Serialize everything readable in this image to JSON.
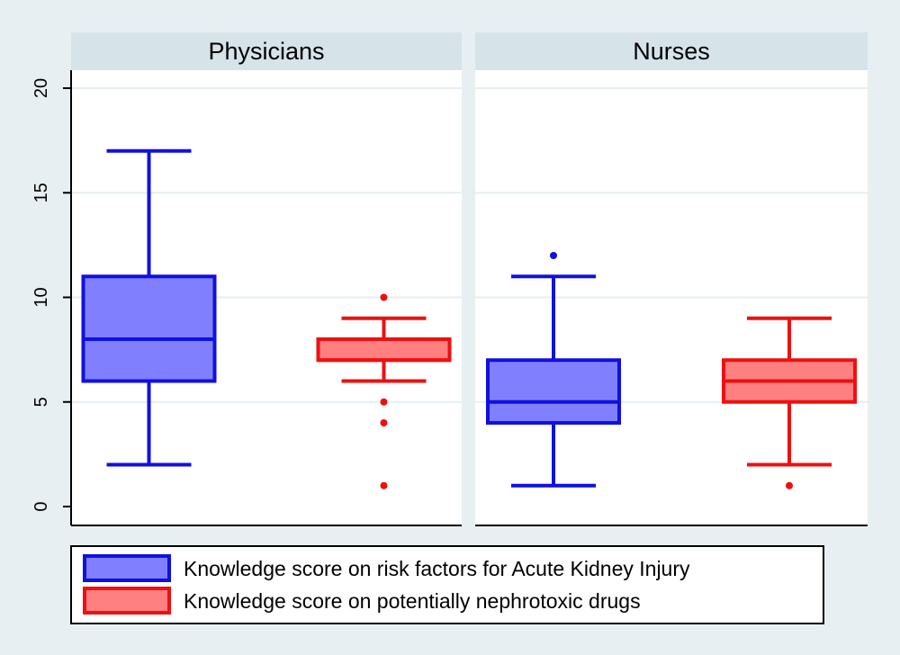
{
  "chart_data": {
    "type": "box",
    "ylim": [
      0,
      20
    ],
    "yticks": [
      0,
      5,
      10,
      15,
      20
    ],
    "grid": true,
    "legend_position": "bottom",
    "panels": [
      {
        "title": "Physicians",
        "boxes": [
          {
            "series": 0,
            "whisker_low": 2,
            "q1": 6,
            "median": 8,
            "q3": 11,
            "whisker_high": 17,
            "outliers": []
          },
          {
            "series": 1,
            "whisker_low": 6,
            "q1": 7,
            "median": 7,
            "q3": 8,
            "whisker_high": 9,
            "outliers": [
              10,
              5,
              4,
              1
            ]
          }
        ]
      },
      {
        "title": "Nurses",
        "boxes": [
          {
            "series": 0,
            "whisker_low": 1,
            "q1": 4,
            "median": 5,
            "q3": 7,
            "whisker_high": 11,
            "outliers": [
              12
            ]
          },
          {
            "series": 1,
            "whisker_low": 2,
            "q1": 5,
            "median": 6,
            "q3": 7,
            "whisker_high": 9,
            "outliers": [
              1
            ]
          }
        ]
      }
    ],
    "series": [
      {
        "name": "Knowledge score on risk factors for Acute Kidney Injury",
        "fill": "#8080ff",
        "stroke": "#1010e0"
      },
      {
        "name": "Knowledge score on potentially nephrotoxic drugs",
        "fill": "#ff8080",
        "stroke": "#ee1010"
      }
    ]
  }
}
